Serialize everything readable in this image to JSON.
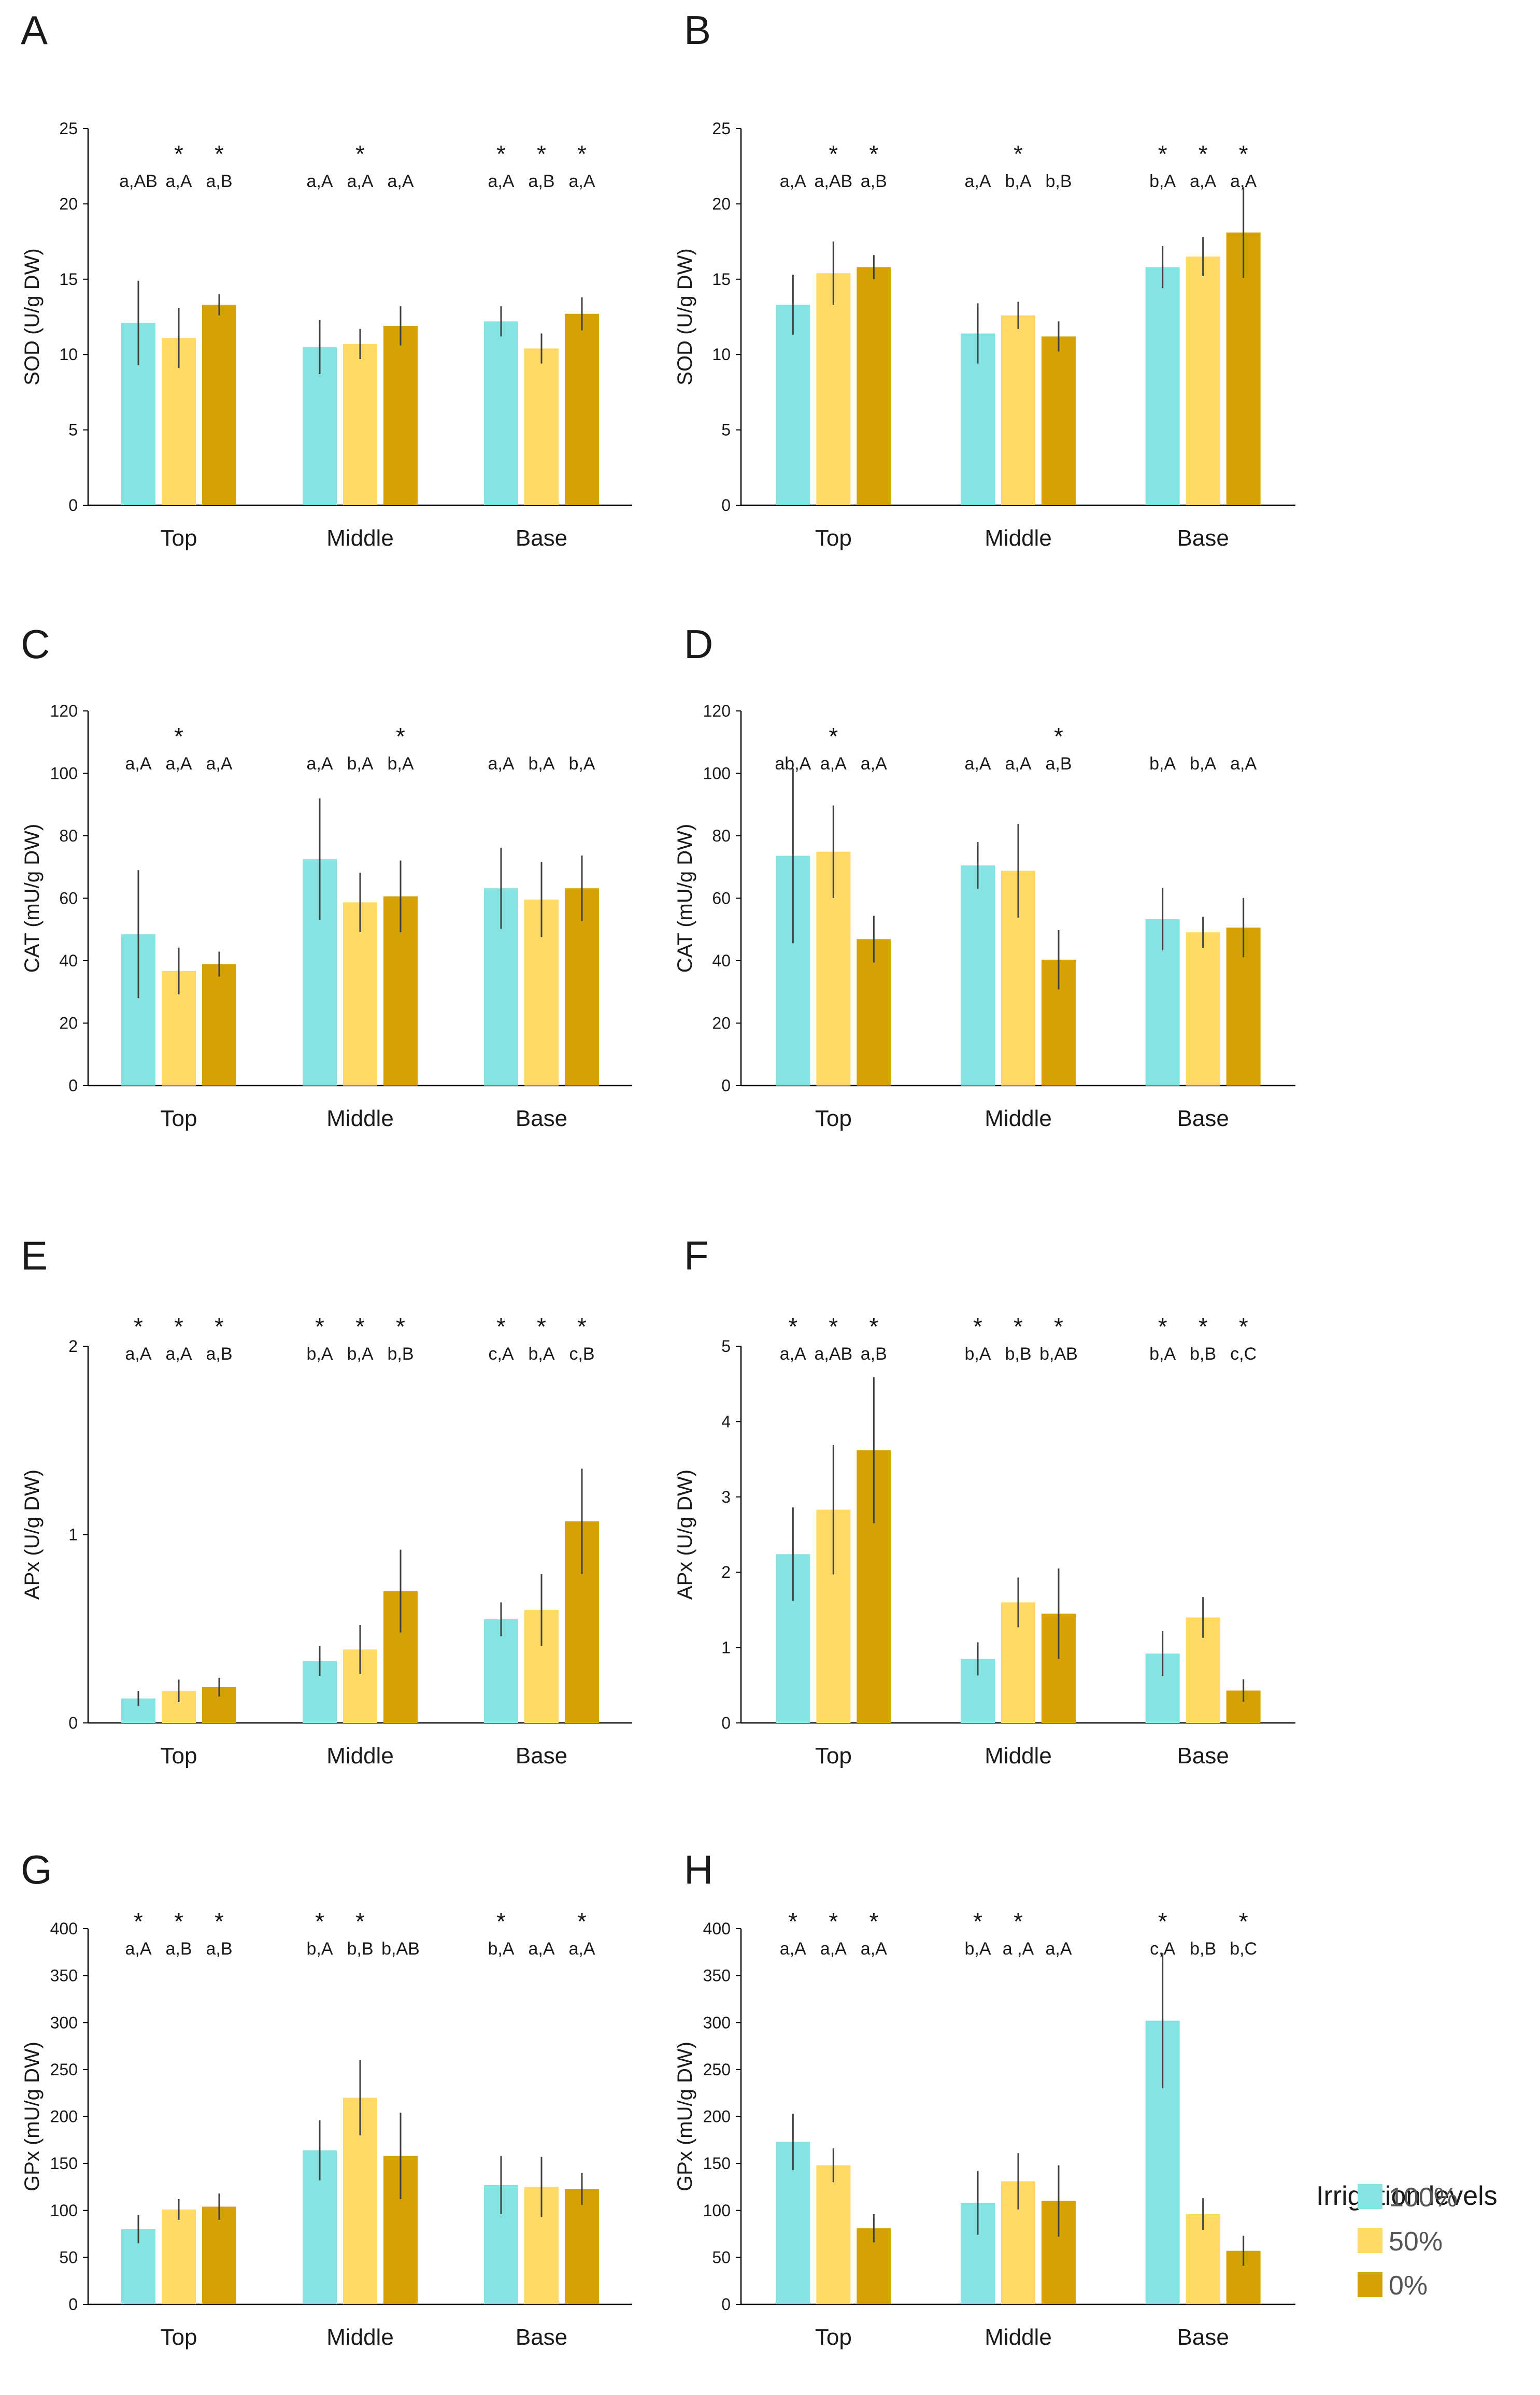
{
  "colors": {
    "c100": "#85E3E2",
    "c50": "#FFD966",
    "c0": "#D6A103",
    "axis": "#000000",
    "err": "#404040"
  },
  "legend": {
    "title": "Irrigation levels",
    "items": [
      {
        "label": "100%",
        "color": "#85E3E2"
      },
      {
        "label": "50%",
        "color": "#FFD966"
      },
      {
        "label": "0%",
        "color": "#D6A103"
      }
    ]
  },
  "chart_data": [
    {
      "panel": "A",
      "type": "bar",
      "ylabel": "SOD (U/g DW)",
      "ylim": [
        0,
        25
      ],
      "yticks": [
        0,
        5,
        10,
        15,
        20,
        25
      ],
      "categories": [
        "Top",
        "Middle",
        "Base"
      ],
      "series": [
        {
          "name": "100%",
          "values": [
            12.1,
            10.5,
            12.2
          ],
          "errors": [
            2.8,
            1.8,
            1.0
          ],
          "letters": [
            "a,AB",
            "a,A",
            "a,A"
          ],
          "stars": [
            false,
            false,
            true
          ]
        },
        {
          "name": "50%",
          "values": [
            11.1,
            10.7,
            10.4
          ],
          "errors": [
            2.0,
            1.0,
            1.0
          ],
          "letters": [
            "a,A",
            "a,A",
            "a,B"
          ],
          "stars": [
            true,
            true,
            true
          ]
        },
        {
          "name": "0%",
          "values": [
            13.3,
            11.9,
            12.7
          ],
          "errors": [
            0.7,
            1.3,
            1.1
          ],
          "letters": [
            "a,B",
            "a,A",
            "a,A"
          ],
          "stars": [
            true,
            false,
            true
          ]
        }
      ]
    },
    {
      "panel": "B",
      "type": "bar",
      "ylabel": "SOD (U/g DW)",
      "ylim": [
        0,
        25
      ],
      "yticks": [
        0,
        5,
        10,
        15,
        20,
        25
      ],
      "categories": [
        "Top",
        "Middle",
        "Base"
      ],
      "series": [
        {
          "name": "100%",
          "values": [
            13.3,
            11.4,
            15.8
          ],
          "errors": [
            2.0,
            2.0,
            1.4
          ],
          "letters": [
            "a,A",
            "a,A",
            "b,A"
          ],
          "stars": [
            false,
            false,
            true
          ]
        },
        {
          "name": "50%",
          "values": [
            15.4,
            12.6,
            16.5
          ],
          "errors": [
            2.1,
            0.9,
            1.3
          ],
          "letters": [
            "a,AB",
            "b,A",
            "a,A"
          ],
          "stars": [
            true,
            true,
            true
          ]
        },
        {
          "name": "0%",
          "values": [
            15.8,
            11.2,
            18.1
          ],
          "errors": [
            0.8,
            1.0,
            3.0
          ],
          "letters": [
            "a,B",
            "b,B",
            "a,A"
          ],
          "stars": [
            true,
            false,
            true
          ]
        }
      ]
    },
    {
      "panel": "C",
      "type": "bar",
      "ylabel": "CAT (mU/g DW)",
      "ylim": [
        0,
        120
      ],
      "yticks": [
        0,
        20,
        40,
        60,
        80,
        100,
        120
      ],
      "categories": [
        "Top",
        "Middle",
        "Base"
      ],
      "series": [
        {
          "name": "100%",
          "values": [
            48.5,
            72.5,
            63.2
          ],
          "errors": [
            20.5,
            19.5,
            13.0
          ],
          "letters": [
            "a,A",
            "a,A",
            "a,A"
          ],
          "stars": [
            false,
            false,
            false
          ]
        },
        {
          "name": "50%",
          "values": [
            36.7,
            58.7,
            59.6
          ],
          "errors": [
            7.5,
            9.5,
            12.0
          ],
          "letters": [
            "a,A",
            "b,A",
            "b,A"
          ],
          "stars": [
            true,
            false,
            false
          ]
        },
        {
          "name": "0%",
          "values": [
            38.9,
            60.6,
            63.2
          ],
          "errors": [
            4.0,
            11.5,
            10.5
          ],
          "letters": [
            "a,A",
            "b,A",
            "b,A"
          ],
          "stars": [
            false,
            true,
            false
          ]
        }
      ]
    },
    {
      "panel": "D",
      "type": "bar",
      "ylabel": "CAT (mU/g DW)",
      "ylim": [
        0,
        120
      ],
      "yticks": [
        0,
        20,
        40,
        60,
        80,
        100,
        120
      ],
      "categories": [
        "Top",
        "Middle",
        "Base"
      ],
      "series": [
        {
          "name": "100%",
          "values": [
            73.6,
            70.5,
            53.3
          ],
          "errors": [
            28.0,
            7.5,
            10.0
          ],
          "letters": [
            "ab,A",
            "a,A",
            "b,A"
          ],
          "stars": [
            false,
            false,
            false
          ]
        },
        {
          "name": "50%",
          "values": [
            74.9,
            68.8,
            49.1
          ],
          "errors": [
            14.8,
            15.0,
            5.0
          ],
          "letters": [
            "a,A",
            "a,A",
            "b,A"
          ],
          "stars": [
            true,
            false,
            false
          ]
        },
        {
          "name": "0%",
          "values": [
            46.9,
            40.3,
            50.6
          ],
          "errors": [
            7.5,
            9.5,
            9.5
          ],
          "letters": [
            "a,A",
            "a,B",
            "a,A"
          ],
          "stars": [
            false,
            true,
            false
          ]
        }
      ]
    },
    {
      "panel": "E",
      "type": "bar",
      "ylabel": "APx (U/g DW)",
      "ylim": [
        0,
        2
      ],
      "yticks": [
        0,
        1,
        2
      ],
      "categories": [
        "Top",
        "Middle",
        "Base"
      ],
      "series": [
        {
          "name": "100%",
          "values": [
            0.13,
            0.33,
            0.55
          ],
          "errors": [
            0.04,
            0.08,
            0.09
          ],
          "letters": [
            "a,A",
            "b,A",
            "c,A"
          ],
          "stars": [
            true,
            true,
            true
          ]
        },
        {
          "name": "50%",
          "values": [
            0.17,
            0.39,
            0.6
          ],
          "errors": [
            0.06,
            0.13,
            0.19
          ],
          "letters": [
            "a,A",
            "b,A",
            "b,A"
          ],
          "stars": [
            true,
            true,
            true
          ]
        },
        {
          "name": "0%",
          "values": [
            0.19,
            0.7,
            1.07
          ],
          "errors": [
            0.05,
            0.22,
            0.28
          ],
          "letters": [
            "a,B",
            "b,B",
            "c,B"
          ],
          "stars": [
            true,
            true,
            true
          ]
        }
      ]
    },
    {
      "panel": "F",
      "type": "bar",
      "ylabel": "APx (U/g DW)",
      "ylim": [
        0,
        5
      ],
      "yticks": [
        0,
        1,
        2,
        3,
        4,
        5
      ],
      "categories": [
        "Top",
        "Middle",
        "Base"
      ],
      "series": [
        {
          "name": "100%",
          "values": [
            2.24,
            0.85,
            0.92
          ],
          "errors": [
            0.62,
            0.22,
            0.3
          ],
          "letters": [
            "a,A",
            "b,A",
            "b,A"
          ],
          "stars": [
            true,
            true,
            true
          ]
        },
        {
          "name": "50%",
          "values": [
            2.83,
            1.6,
            1.4
          ],
          "errors": [
            0.86,
            0.33,
            0.27
          ],
          "letters": [
            "a,AB",
            "b,B",
            "b,B"
          ],
          "stars": [
            true,
            true,
            true
          ]
        },
        {
          "name": "0%",
          "values": [
            3.62,
            1.45,
            0.43
          ],
          "errors": [
            0.97,
            0.6,
            0.15
          ],
          "letters": [
            "a,B",
            "b,AB",
            "c,C"
          ],
          "stars": [
            true,
            true,
            true
          ]
        }
      ]
    },
    {
      "panel": "G",
      "type": "bar",
      "ylabel": "GPx (mU/g DW)",
      "ylim": [
        0,
        400
      ],
      "yticks": [
        0,
        50,
        100,
        150,
        200,
        250,
        300,
        350,
        400
      ],
      "categories": [
        "Top",
        "Middle",
        "Base"
      ],
      "series": [
        {
          "name": "100%",
          "values": [
            80,
            164,
            127
          ],
          "errors": [
            15,
            32,
            31
          ],
          "letters": [
            "a,A",
            "b,A",
            "b,A"
          ],
          "stars": [
            true,
            true,
            true
          ]
        },
        {
          "name": "50%",
          "values": [
            101,
            220,
            125
          ],
          "errors": [
            11,
            40,
            32
          ],
          "letters": [
            "a,B",
            "b,B",
            "a,A"
          ],
          "stars": [
            true,
            true,
            false
          ]
        },
        {
          "name": "0%",
          "values": [
            104,
            158,
            123
          ],
          "errors": [
            14,
            46,
            17
          ],
          "letters": [
            "a,B",
            "b,AB",
            "a,A"
          ],
          "stars": [
            true,
            false,
            true
          ]
        }
      ]
    },
    {
      "panel": "H",
      "type": "bar",
      "ylabel": "GPx (mU/g DW)",
      "ylim": [
        0,
        400
      ],
      "yticks": [
        0,
        50,
        100,
        150,
        200,
        250,
        300,
        350,
        400
      ],
      "categories": [
        "Top",
        "Middle",
        "Base"
      ],
      "series": [
        {
          "name": "100%",
          "values": [
            173,
            108,
            302
          ],
          "errors": [
            30,
            34,
            72
          ],
          "letters": [
            "a,A",
            "b,A",
            "c,A"
          ],
          "stars": [
            true,
            true,
            true
          ]
        },
        {
          "name": "50%",
          "values": [
            148,
            131,
            96
          ],
          "errors": [
            18,
            30,
            17
          ],
          "letters": [
            "a,A",
            "a ,A",
            "b,B"
          ],
          "stars": [
            true,
            true,
            false
          ]
        },
        {
          "name": "0%",
          "values": [
            81,
            110,
            57
          ],
          "errors": [
            15,
            38,
            16
          ],
          "letters": [
            "a,A",
            "a,A",
            "b,C"
          ],
          "stars": [
            true,
            false,
            true
          ]
        }
      ]
    }
  ]
}
